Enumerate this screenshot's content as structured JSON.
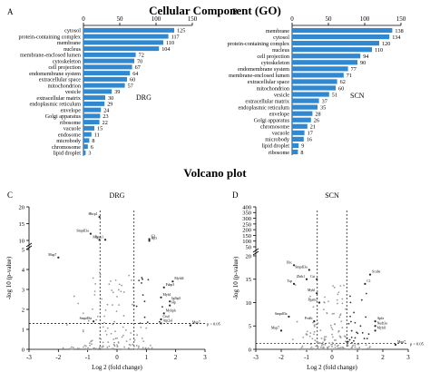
{
  "titles": {
    "top": "Cellular Component (GO)",
    "bottom": "Volcano plot"
  },
  "colors": {
    "bar": "#2f88d0",
    "up": "#1a1a1a",
    "dash": "#000000"
  },
  "chart_data": [
    {
      "type": "bar",
      "panel": "A",
      "label": "DRG",
      "xlim": [
        0,
        150
      ],
      "xticks": [
        0,
        50,
        100,
        150
      ],
      "categories": [
        "cytosol",
        "protein-containing complex",
        "membrane",
        "nucleus",
        "membrane-enclosed lumen",
        "cytoskeleton",
        "cell projection",
        "endomembrane system",
        "extracellular space",
        "mitochondrion",
        "vesicle",
        "extracellular matrix",
        "endoplasmic reticulum",
        "envelope",
        "Golgi apparatus",
        "ribosome",
        "vacuole",
        "endosome",
        "microbody",
        "chromosome",
        "lipid droplet"
      ],
      "values": [
        125,
        117,
        110,
        104,
        72,
        70,
        67,
        64,
        60,
        57,
        39,
        30,
        29,
        24,
        23,
        22,
        15,
        11,
        8,
        6,
        3
      ]
    },
    {
      "type": "bar",
      "panel": "B",
      "label": "SCN",
      "xlim": [
        0,
        150
      ],
      "xticks": [
        0,
        50,
        100,
        150
      ],
      "categories": [
        "membrane",
        "cytosol",
        "protein-containing complex",
        "nucleus",
        "cell projection",
        "cytoskeleton",
        "endomembrane system",
        "membrane-enclosed lumen",
        "extracellular space",
        "mitochondrion",
        "vesicle",
        "extracellular matrix",
        "endoplasmic reticulum",
        "envelope",
        "Golgi apparatus",
        "chromosome",
        "vacuole",
        "microbody",
        "lipid droplet",
        "ribosome"
      ],
      "values": [
        138,
        134,
        120,
        110,
        94,
        90,
        77,
        71,
        62,
        60,
        51,
        37,
        35,
        28,
        26,
        21,
        17,
        16,
        9,
        8
      ]
    },
    {
      "type": "scatter",
      "panel": "C",
      "label": "DRG",
      "xlabel": "Log 2 (fold change)",
      "ylabel": "-log 10 (p-value)",
      "xlim": [
        -3,
        3
      ],
      "xticks": [
        -3,
        -2,
        -1,
        0,
        1,
        2,
        3
      ],
      "ylim_display": "broken axis 0–5, 10–20",
      "yticks": [
        "0",
        "1",
        "2",
        "3",
        "4",
        "5",
        "10",
        "15",
        "20"
      ],
      "threshold_label": "p < 0.05",
      "labeled_points": [
        {
          "name": "Hbcp1",
          "x": -0.6,
          "y": 17
        },
        {
          "name": "Smpdl3a",
          "x": -0.9,
          "y": 12
        },
        {
          "name": "Mb",
          "x": -0.6,
          "y": 10.2
        },
        {
          "name": "Apcs1",
          "x": -0.4,
          "y": 10.2
        },
        {
          "name": "C3",
          "x": 1.1,
          "y": 10.4
        },
        {
          "name": "Hpx",
          "x": 1.1,
          "y": 9.9
        },
        {
          "name": "Mup7",
          "x": -2.0,
          "y": 4.6
        },
        {
          "name": "Mybl4",
          "x": 1.9,
          "y": 3.4
        },
        {
          "name": "Fabp3",
          "x": 1.6,
          "y": 3.1
        },
        {
          "name": "Myh1",
          "x": 1.5,
          "y": 2.6
        },
        {
          "name": "Igfbp5",
          "x": 1.8,
          "y": 2.4
        },
        {
          "name": "Hp",
          "x": 1.8,
          "y": 2.2
        },
        {
          "name": "Mybph",
          "x": 1.6,
          "y": 1.8
        },
        {
          "name": "Ctsd",
          "x": 1.5,
          "y": 1.5
        },
        {
          "name": "Atp2a1",
          "x": 1.5,
          "y": 1.3
        },
        {
          "name": "Smpdl3a",
          "x": -0.8,
          "y": 1.4
        },
        {
          "name": "Mup7",
          "x": 2.5,
          "y": 1.2
        }
      ]
    },
    {
      "type": "scatter",
      "panel": "D",
      "label": "SCN",
      "xlabel": "Log 2 (fold change)",
      "ylabel": "-log 10 (p-value)",
      "xlim": [
        -3,
        3
      ],
      "xticks": [
        -3,
        -2,
        -1,
        0,
        1,
        2,
        3
      ],
      "ylim_display": "broken axis 0–20, 50–400",
      "yticks": [
        "0",
        "5",
        "10",
        "15",
        "20",
        "50",
        "100",
        "150",
        "200",
        "250",
        "300",
        "350",
        "400"
      ],
      "threshold_label": "p < 0.05",
      "labeled_points": [
        {
          "name": "Ubc",
          "x": -1.5,
          "y": 18
        },
        {
          "name": "Smpdl3a",
          "x": -0.9,
          "y": 17
        },
        {
          "name": "Zbtb1",
          "x": -1.0,
          "y": 15
        },
        {
          "name": "Cst",
          "x": -0.6,
          "y": 15
        },
        {
          "name": "Tsp",
          "x": -1.5,
          "y": 14
        },
        {
          "name": "Mybl",
          "x": -0.6,
          "y": 12
        },
        {
          "name": "Pgam2",
          "x": -0.5,
          "y": 10
        },
        {
          "name": "Scube",
          "x": 1.5,
          "y": 16
        },
        {
          "name": "C1",
          "x": 1.3,
          "y": 14
        },
        {
          "name": "Smpdl3a",
          "x": -1.7,
          "y": 7
        },
        {
          "name": "Pvalb",
          "x": -0.7,
          "y": 6
        },
        {
          "name": "Apfa",
          "x": 1.7,
          "y": 6
        },
        {
          "name": "Nudt3a",
          "x": 1.7,
          "y": 5
        },
        {
          "name": "Mup7",
          "x": -2.0,
          "y": 4
        },
        {
          "name": "Mybl1",
          "x": 1.7,
          "y": 4
        },
        {
          "name": "Mup7",
          "x": 2.5,
          "y": 1
        }
      ]
    }
  ]
}
